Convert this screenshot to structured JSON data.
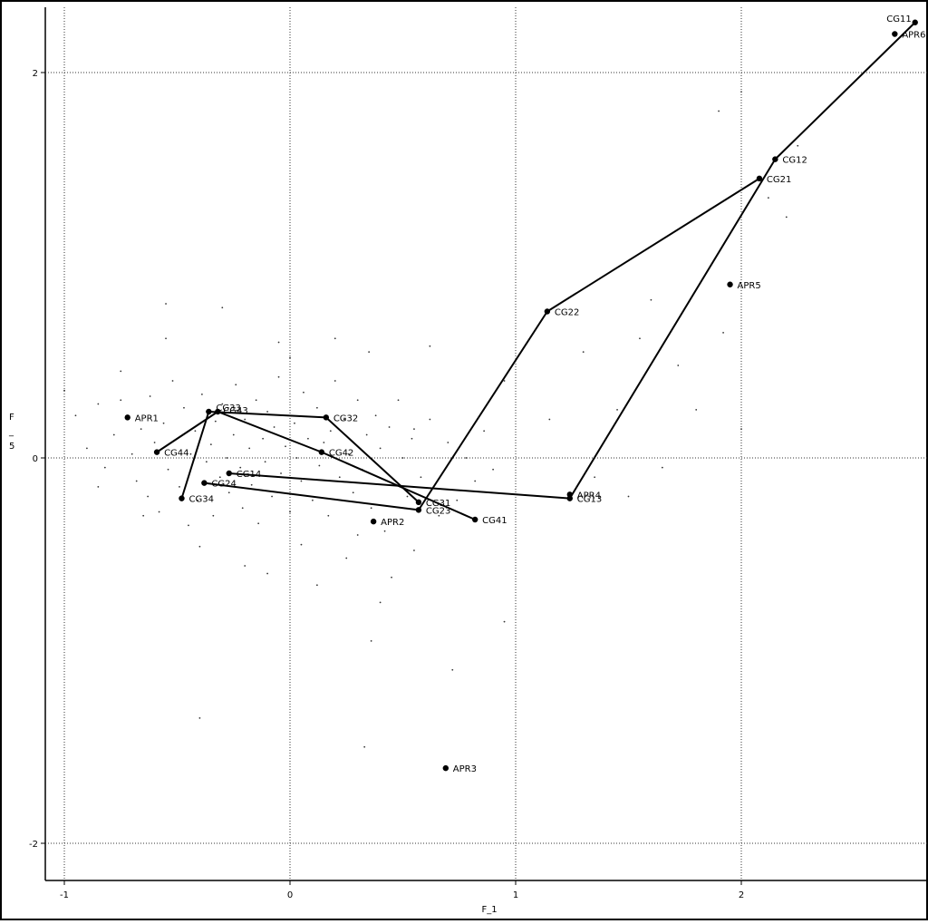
{
  "chart_data": {
    "type": "scatter",
    "title": "",
    "xlabel": "F_1",
    "ylabel": "F\n_\n5",
    "xlim": [
      -1.1,
      2.8
    ],
    "ylim": [
      -2.2,
      2.25
    ],
    "xticks": [
      "-1",
      "0",
      "1",
      "2"
    ],
    "yticks": [
      "2",
      "0",
      "-2"
    ],
    "grid": true,
    "labeled_points": [
      {
        "name": "CG11",
        "x": 2.77,
        "y": 2.26
      },
      {
        "name": "APR6",
        "x": 2.68,
        "y": 2.2
      },
      {
        "name": "CG12",
        "x": 2.15,
        "y": 1.55
      },
      {
        "name": "CG21",
        "x": 2.08,
        "y": 1.45
      },
      {
        "name": "APR5",
        "x": 1.95,
        "y": 0.9
      },
      {
        "name": "CG22",
        "x": 1.14,
        "y": 0.76
      },
      {
        "name": "APR1",
        "x": -0.72,
        "y": 0.21
      },
      {
        "name": "CG33",
        "x": -0.36,
        "y": 0.24
      },
      {
        "name": "CG43",
        "x": -0.32,
        "y": 0.24
      },
      {
        "name": "CG32",
        "x": 0.16,
        "y": 0.21
      },
      {
        "name": "CG44",
        "x": -0.59,
        "y": 0.03
      },
      {
        "name": "CG42",
        "x": 0.14,
        "y": 0.03
      },
      {
        "name": "CG14",
        "x": -0.27,
        "y": -0.08
      },
      {
        "name": "CG24",
        "x": -0.38,
        "y": -0.13
      },
      {
        "name": "CG34",
        "x": -0.48,
        "y": -0.21
      },
      {
        "name": "APR4",
        "x": 1.24,
        "y": -0.19
      },
      {
        "name": "CG13",
        "x": 1.24,
        "y": -0.21
      },
      {
        "name": "CG31",
        "x": 0.57,
        "y": -0.23
      },
      {
        "name": "CG23",
        "x": 0.57,
        "y": -0.27
      },
      {
        "name": "CG41",
        "x": 0.82,
        "y": -0.32
      },
      {
        "name": "APR2",
        "x": 0.37,
        "y": -0.33
      },
      {
        "name": "APR3",
        "x": 0.69,
        "y": -1.61
      }
    ],
    "paths": [
      {
        "points": [
          "CG11",
          "CG12",
          "CG13",
          "CG14"
        ]
      },
      {
        "points": [
          "CG21",
          "CG22",
          "CG23",
          "CG24"
        ]
      },
      {
        "points": [
          "CG31",
          "CG32",
          "CG33",
          "CG34"
        ]
      },
      {
        "points": [
          "CG41",
          "CG42",
          "CG43",
          "CG44"
        ]
      }
    ],
    "cloud": [
      [
        -1.0,
        0.35
      ],
      [
        -0.95,
        0.22
      ],
      [
        -0.9,
        0.05
      ],
      [
        -0.85,
        0.28
      ],
      [
        -0.82,
        -0.05
      ],
      [
        -0.78,
        0.12
      ],
      [
        -0.75,
        0.3
      ],
      [
        -0.7,
        0.02
      ],
      [
        -0.68,
        -0.12
      ],
      [
        -0.66,
        0.15
      ],
      [
        -0.63,
        -0.2
      ],
      [
        -0.62,
        0.32
      ],
      [
        -0.6,
        0.08
      ],
      [
        -0.58,
        -0.28
      ],
      [
        -0.56,
        0.18
      ],
      [
        -0.54,
        -0.06
      ],
      [
        -0.52,
        0.4
      ],
      [
        -0.5,
        0.1
      ],
      [
        -0.49,
        -0.15
      ],
      [
        -0.47,
        0.26
      ],
      [
        -0.45,
        -0.35
      ],
      [
        -0.44,
        0.02
      ],
      [
        -0.42,
        0.14
      ],
      [
        -0.41,
        -0.22
      ],
      [
        -0.39,
        0.33
      ],
      [
        -0.37,
        -0.02
      ],
      [
        -0.35,
        0.07
      ],
      [
        -0.34,
        -0.3
      ],
      [
        -0.33,
        0.19
      ],
      [
        -0.31,
        -0.1
      ],
      [
        -0.3,
        0.28
      ],
      [
        -0.28,
        0.0
      ],
      [
        -0.27,
        -0.18
      ],
      [
        -0.25,
        0.12
      ],
      [
        -0.24,
        0.38
      ],
      [
        -0.22,
        -0.05
      ],
      [
        -0.21,
        -0.26
      ],
      [
        -0.2,
        0.2
      ],
      [
        -0.18,
        0.05
      ],
      [
        -0.17,
        -0.14
      ],
      [
        -0.15,
        0.3
      ],
      [
        -0.14,
        -0.34
      ],
      [
        -0.12,
        0.1
      ],
      [
        -0.11,
        -0.02
      ],
      [
        -0.1,
        0.24
      ],
      [
        -0.08,
        -0.2
      ],
      [
        -0.07,
        0.16
      ],
      [
        -0.05,
        0.42
      ],
      [
        -0.04,
        -0.08
      ],
      [
        -0.02,
        0.06
      ],
      [
        0.0,
        -0.28
      ],
      [
        0.02,
        0.18
      ],
      [
        0.03,
        0.0
      ],
      [
        0.05,
        -0.12
      ],
      [
        0.06,
        0.34
      ],
      [
        0.08,
        0.1
      ],
      [
        0.1,
        -0.22
      ],
      [
        0.12,
        0.26
      ],
      [
        0.13,
        -0.04
      ],
      [
        0.15,
        0.08
      ],
      [
        0.17,
        -0.3
      ],
      [
        0.18,
        0.14
      ],
      [
        0.2,
        0.4
      ],
      [
        0.22,
        -0.1
      ],
      [
        0.24,
        0.2
      ],
      [
        0.26,
        0.02
      ],
      [
        0.28,
        -0.18
      ],
      [
        0.3,
        0.3
      ],
      [
        0.32,
        -0.06
      ],
      [
        0.34,
        0.12
      ],
      [
        0.36,
        -0.26
      ],
      [
        0.38,
        0.22
      ],
      [
        0.4,
        0.05
      ],
      [
        0.42,
        -0.38
      ],
      [
        0.44,
        0.16
      ],
      [
        0.46,
        -0.14
      ],
      [
        0.48,
        0.3
      ],
      [
        0.5,
        0.0
      ],
      [
        0.52,
        -0.2
      ],
      [
        0.54,
        0.1
      ],
      [
        0.58,
        -0.1
      ],
      [
        0.62,
        0.2
      ],
      [
        0.66,
        -0.3
      ],
      [
        0.7,
        0.08
      ],
      [
        0.74,
        -0.22
      ],
      [
        0.78,
        0.0
      ],
      [
        0.82,
        -0.12
      ],
      [
        0.86,
        0.14
      ],
      [
        0.9,
        -0.06
      ],
      [
        -0.55,
        0.62
      ],
      [
        -0.3,
        0.78
      ],
      [
        -0.1,
        -0.6
      ],
      [
        0.25,
        -0.52
      ],
      [
        0.12,
        -0.66
      ],
      [
        0.4,
        -0.75
      ],
      [
        0.55,
        -0.48
      ],
      [
        0.62,
        0.58
      ],
      [
        0.35,
        0.55
      ],
      [
        -0.75,
        0.45
      ],
      [
        -0.4,
        -0.46
      ],
      [
        -0.2,
        -0.56
      ],
      [
        0.0,
        0.52
      ],
      [
        0.2,
        0.62
      ],
      [
        0.3,
        -0.4
      ],
      [
        0.45,
        -0.62
      ],
      [
        -0.65,
        -0.3
      ],
      [
        -0.85,
        -0.15
      ],
      [
        0.05,
        -0.45
      ],
      [
        -0.05,
        0.6
      ],
      [
        1.65,
        -0.05
      ],
      [
        1.8,
        0.25
      ],
      [
        2.0,
        0.15
      ],
      [
        1.72,
        0.48
      ],
      [
        1.55,
        0.62
      ],
      [
        1.92,
        0.65
      ],
      [
        2.2,
        1.25
      ],
      [
        1.45,
        0.25
      ],
      [
        1.6,
        0.82
      ],
      [
        2.25,
        1.62
      ],
      [
        1.3,
        0.55
      ],
      [
        2.12,
        1.35
      ],
      [
        0.95,
        0.4
      ],
      [
        1.9,
        1.8
      ],
      [
        1.5,
        -0.2
      ],
      [
        1.15,
        0.2
      ],
      [
        0.72,
        -1.1
      ],
      [
        0.36,
        -0.95
      ],
      [
        0.33,
        -1.5
      ],
      [
        -0.4,
        -1.35
      ],
      [
        -0.55,
        0.8
      ],
      [
        0.95,
        -0.85
      ],
      [
        2.85,
        -1.15
      ],
      [
        1.35,
        -0.1
      ],
      [
        0.55,
        0.15
      ],
      [
        2.0,
        1.9
      ]
    ]
  }
}
